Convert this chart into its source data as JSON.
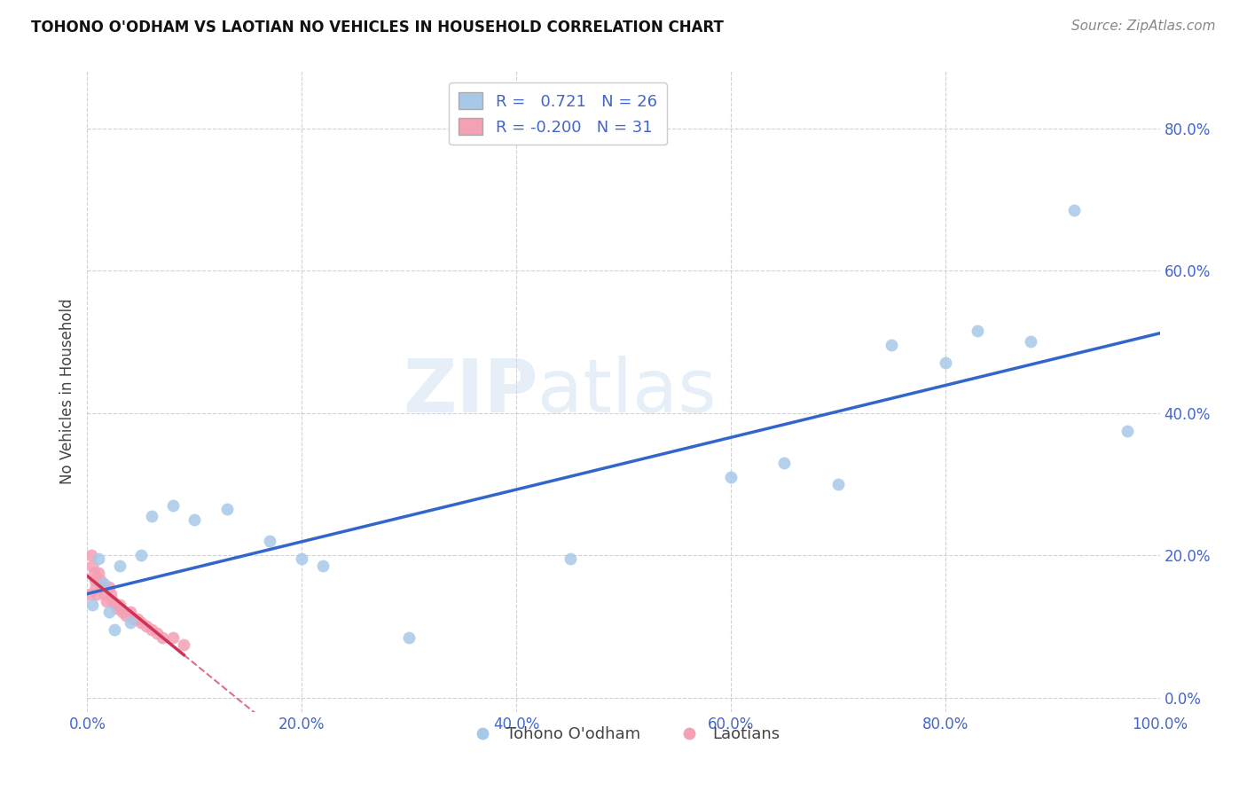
{
  "title": "TOHONO O'ODHAM VS LAOTIAN NO VEHICLES IN HOUSEHOLD CORRELATION CHART",
  "source": "Source: ZipAtlas.com",
  "ylabel": "No Vehicles in Household",
  "legend_label1": "Tohono O'odham",
  "legend_label2": "Laotians",
  "r1": 0.721,
  "n1": 26,
  "r2": -0.2,
  "n2": 31,
  "blue_color": "#a8c8e8",
  "pink_color": "#f4a0b5",
  "blue_line_color": "#3366cc",
  "pink_line_color": "#cc3355",
  "watermark_zip": "ZIP",
  "watermark_atlas": "atlas",
  "background": "#ffffff",
  "tohono_x": [
    0.005,
    0.01,
    0.015,
    0.02,
    0.025,
    0.03,
    0.04,
    0.05,
    0.06,
    0.08,
    0.1,
    0.13,
    0.17,
    0.2,
    0.22,
    0.3,
    0.45,
    0.6,
    0.65,
    0.7,
    0.75,
    0.8,
    0.83,
    0.88,
    0.92,
    0.97
  ],
  "tohono_y": [
    0.13,
    0.195,
    0.16,
    0.12,
    0.095,
    0.185,
    0.105,
    0.2,
    0.255,
    0.27,
    0.25,
    0.265,
    0.22,
    0.195,
    0.185,
    0.085,
    0.195,
    0.31,
    0.33,
    0.3,
    0.495,
    0.47,
    0.515,
    0.5,
    0.685,
    0.375
  ],
  "laotian_x": [
    0.002,
    0.004,
    0.005,
    0.006,
    0.007,
    0.008,
    0.009,
    0.01,
    0.012,
    0.013,
    0.015,
    0.016,
    0.018,
    0.02,
    0.022,
    0.024,
    0.026,
    0.028,
    0.03,
    0.033,
    0.036,
    0.04,
    0.043,
    0.047,
    0.05,
    0.055,
    0.06,
    0.065,
    0.07,
    0.08,
    0.09
  ],
  "laotian_y": [
    0.145,
    0.2,
    0.185,
    0.175,
    0.165,
    0.155,
    0.145,
    0.175,
    0.165,
    0.16,
    0.155,
    0.145,
    0.135,
    0.155,
    0.145,
    0.135,
    0.13,
    0.125,
    0.13,
    0.12,
    0.115,
    0.12,
    0.11,
    0.11,
    0.105,
    0.1,
    0.095,
    0.09,
    0.085,
    0.085,
    0.075
  ],
  "xlim": [
    0.0,
    1.0
  ],
  "ylim": [
    -0.02,
    0.88
  ],
  "xticks": [
    0.0,
    0.2,
    0.4,
    0.6,
    0.8,
    1.0
  ],
  "yticks": [
    0.0,
    0.2,
    0.4,
    0.6,
    0.8
  ],
  "xtick_labels": [
    "0.0%",
    "20.0%",
    "40.0%",
    "60.0%",
    "80.0%",
    "100.0%"
  ],
  "ytick_labels": [
    "0.0%",
    "20.0%",
    "40.0%",
    "60.0%",
    "80.0%"
  ],
  "marker_size": 100,
  "tick_color": "#4466cc",
  "grid_color": "#cccccc",
  "title_fontsize": 12,
  "source_fontsize": 11,
  "tick_fontsize": 12,
  "ylabel_fontsize": 12
}
